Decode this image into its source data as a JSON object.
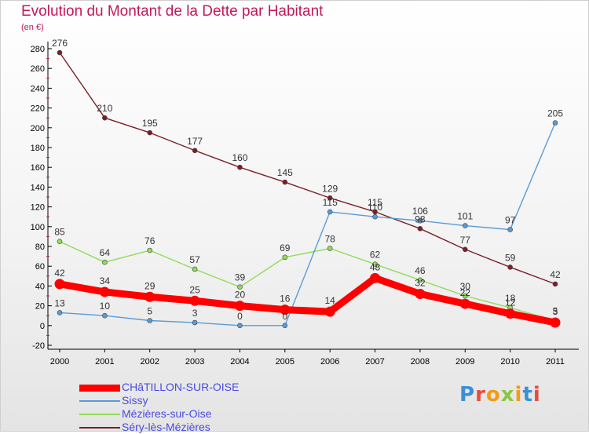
{
  "title": "Evolution du Montant de la Dette par Habitant",
  "unit_label": "(en €)",
  "brand": "Proxiti",
  "chart_data": {
    "type": "line",
    "x": [
      "2000",
      "2001",
      "2002",
      "2003",
      "2004",
      "2005",
      "2006",
      "2007",
      "2008",
      "2009",
      "2010",
      "2011"
    ],
    "ylim": [
      -20,
      280
    ],
    "yticks": [
      -20,
      0,
      20,
      40,
      60,
      80,
      100,
      120,
      140,
      160,
      180,
      200,
      220,
      240,
      260,
      280
    ],
    "grid": false,
    "legend_position": "bottom-left",
    "series": [
      {
        "name": "CHâTILLON-SUR-OISE",
        "color": "#ff0000",
        "values": [
          42,
          34,
          29,
          25,
          20,
          16,
          14,
          48,
          32,
          22,
          12,
          3
        ],
        "labels": [
          "42",
          "34",
          "29",
          "25",
          "20",
          "16",
          "14",
          "48",
          "32",
          "22",
          "12",
          "3"
        ]
      },
      {
        "name": "Sissy",
        "color": "#5b9bd5",
        "values": [
          13,
          10,
          5,
          3,
          0,
          0,
          115,
          110,
          106,
          101,
          97,
          205
        ],
        "labels": [
          "13",
          "10",
          "5",
          "3",
          "0",
          "0",
          "115",
          "110",
          "106",
          "101",
          "97",
          "205"
        ]
      },
      {
        "name": "Mézières-sur-Oise",
        "color": "#8fdc5a",
        "values": [
          85,
          64,
          76,
          57,
          39,
          69,
          78,
          62,
          46,
          30,
          18,
          5
        ],
        "labels": [
          "85",
          "64",
          "76",
          "57",
          "39",
          "69",
          "78",
          "62",
          "46",
          "30",
          "18",
          "5"
        ]
      },
      {
        "name": "Séry-lès-Mézières",
        "color": "#7b1f24",
        "values": [
          276,
          210,
          195,
          177,
          160,
          145,
          129,
          115,
          98,
          77,
          59,
          42
        ],
        "labels": [
          "276",
          "210",
          "195",
          "177",
          "160",
          "145",
          "129",
          "115",
          "98",
          "77",
          "59",
          "42"
        ]
      }
    ]
  }
}
